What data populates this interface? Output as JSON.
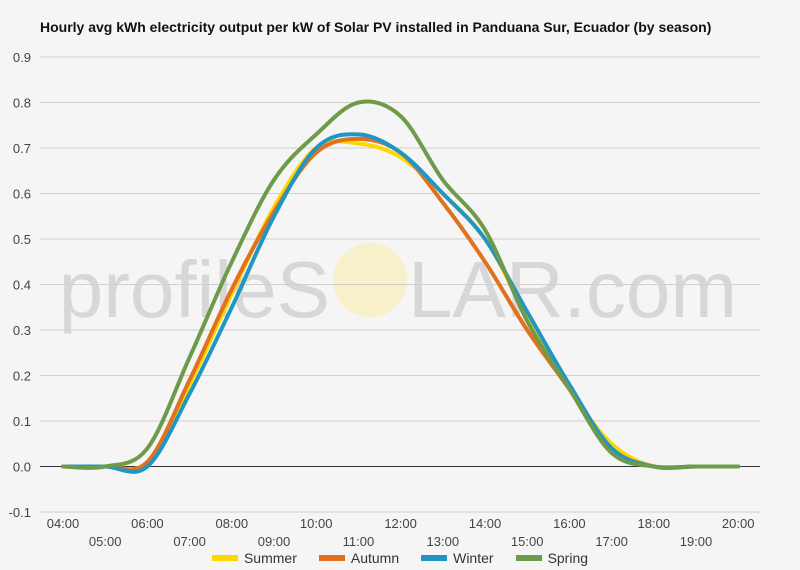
{
  "chart_data": {
    "type": "line",
    "title": "Hourly avg kWh electricity output per kW of Solar PV installed in Panduana Sur, Ecuador (by season)",
    "x_labels_row1": [
      "04:00",
      "06:00",
      "08:00",
      "10:00",
      "12:00",
      "14:00",
      "16:00",
      "18:00",
      "20:00"
    ],
    "x_labels_row2": [
      "05:00",
      "07:00",
      "09:00",
      "11:00",
      "13:00",
      "15:00",
      "17:00",
      "19:00"
    ],
    "x": [
      "04:00",
      "05:00",
      "06:00",
      "07:00",
      "08:00",
      "09:00",
      "10:00",
      "11:00",
      "12:00",
      "13:00",
      "14:00",
      "15:00",
      "16:00",
      "17:00",
      "18:00",
      "19:00",
      "20:00"
    ],
    "yticks": [
      -0.1,
      0.0,
      0.1,
      0.2,
      0.3,
      0.4,
      0.5,
      0.6,
      0.7,
      0.8,
      0.9
    ],
    "ytick_labels": [
      "-0.1",
      "0.0",
      "0.1",
      "0.2",
      "0.3",
      "0.4",
      "0.5",
      "0.6",
      "0.7",
      "0.8",
      "0.9"
    ],
    "ylim": [
      -0.1,
      0.9
    ],
    "grid": true,
    "legend_position": "bottom",
    "series": [
      {
        "name": "Summer",
        "color": "#FFD700",
        "values": [
          0.0,
          0.0,
          0.01,
          0.18,
          0.38,
          0.57,
          0.7,
          0.71,
          0.68,
          0.6,
          0.5,
          0.33,
          0.17,
          0.05,
          0.0,
          0.0,
          0.0
        ]
      },
      {
        "name": "Autumn",
        "color": "#E2711D",
        "values": [
          0.0,
          0.0,
          0.01,
          0.19,
          0.39,
          0.56,
          0.69,
          0.72,
          0.69,
          0.58,
          0.45,
          0.3,
          0.17,
          0.04,
          0.0,
          0.0,
          0.0
        ]
      },
      {
        "name": "Winter",
        "color": "#2196C4",
        "values": [
          0.0,
          0.0,
          0.0,
          0.16,
          0.35,
          0.55,
          0.7,
          0.73,
          0.69,
          0.6,
          0.5,
          0.34,
          0.18,
          0.04,
          0.0,
          0.0,
          0.0
        ]
      },
      {
        "name": "Spring",
        "color": "#6E9B4B",
        "values": [
          0.0,
          0.0,
          0.04,
          0.24,
          0.45,
          0.63,
          0.73,
          0.8,
          0.77,
          0.63,
          0.52,
          0.32,
          0.17,
          0.03,
          0.0,
          0.0,
          0.0
        ]
      }
    ]
  },
  "watermark": {
    "text_left": "profileS",
    "text_right": "LAR.com"
  }
}
